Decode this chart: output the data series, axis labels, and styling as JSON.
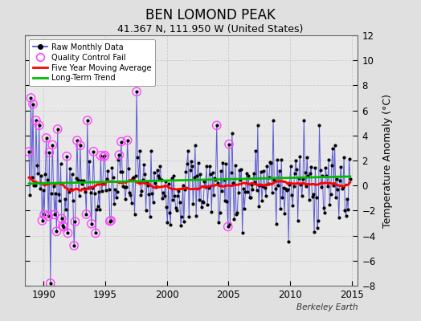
{
  "title": "BEN LOMOND PEAK",
  "subtitle": "41.367 N, 111.950 W (United States)",
  "ylabel": "Temperature Anomaly (°C)",
  "watermark": "Berkeley Earth",
  "ylim": [
    -8,
    12
  ],
  "yticks": [
    -8,
    -6,
    -4,
    -2,
    0,
    2,
    4,
    6,
    8,
    10,
    12
  ],
  "xlim": [
    1988.5,
    2015.5
  ],
  "xticks": [
    1990,
    1995,
    2000,
    2005,
    2010,
    2015
  ],
  "start_year": 1988,
  "start_month": 10,
  "n_months": 314,
  "background_color": "#e0e0e0",
  "plot_bg_color": "#e8e8e8",
  "raw_line_color": "#4444cc",
  "raw_dot_color": "#000000",
  "qc_fail_color": "#ff44ff",
  "moving_avg_color": "#ff0000",
  "trend_color": "#00bb00",
  "title_fontsize": 12,
  "subtitle_fontsize": 9,
  "axis_label_fontsize": 9,
  "trend_slope": 0.022,
  "trend_intercept": 0.15
}
